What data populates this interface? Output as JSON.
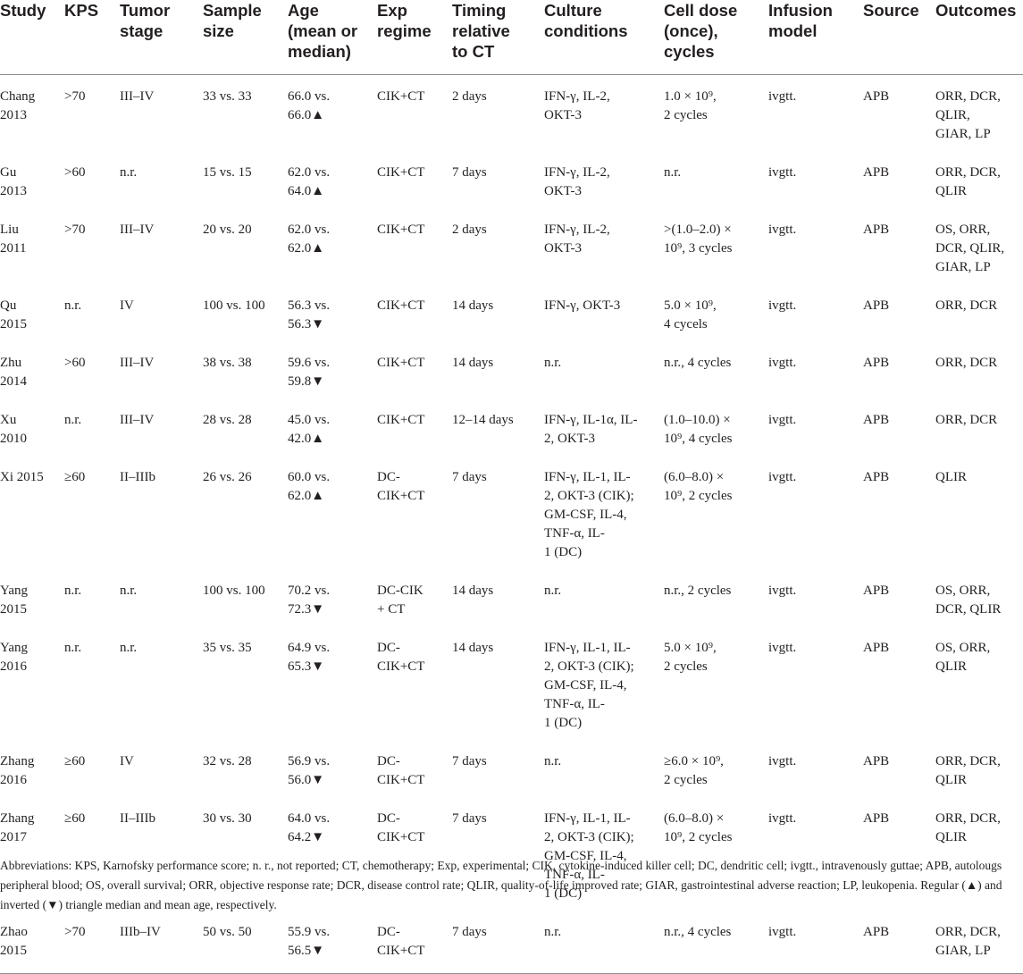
{
  "table": {
    "headers": [
      [
        "Study"
      ],
      [
        "KPS"
      ],
      [
        "Tumor",
        "stage"
      ],
      [
        "Sample",
        "size"
      ],
      [
        "Age",
        "(mean or",
        "median)"
      ],
      [
        "Exp",
        "regime"
      ],
      [
        "Timing",
        "relative",
        "to CT"
      ],
      [
        "Culture",
        "conditions"
      ],
      [
        "Cell dose",
        "(once),",
        "cycles"
      ],
      [
        "Infusion",
        "model"
      ],
      [
        "Source"
      ],
      [
        "Outcomes"
      ]
    ],
    "rows": [
      {
        "study": [
          "Chang",
          "2013"
        ],
        "kps": ">70",
        "stage": "III–IV",
        "sample": "33 vs. 33",
        "age": [
          "66.0 vs.",
          "66.0▲"
        ],
        "regime": [
          "CIK+CT"
        ],
        "timing": "2 days",
        "culture": [
          "IFN-γ, IL-2,",
          "OKT-3"
        ],
        "dose": [
          "1.0 × 10⁹,",
          "2 cycles"
        ],
        "infusion": "ivgtt.",
        "source": "APB",
        "outcomes": [
          "ORR, DCR,",
          "QLIR,",
          "GIAR, LP"
        ]
      },
      {
        "study": [
          "Gu",
          "2013"
        ],
        "kps": ">60",
        "stage": "n.r.",
        "sample": "15 vs. 15",
        "age": [
          "62.0 vs.",
          "64.0▲"
        ],
        "regime": [
          "CIK+CT"
        ],
        "timing": "7 days",
        "culture": [
          "IFN-γ, IL-2,",
          "OKT-3"
        ],
        "dose": [
          "n.r."
        ],
        "infusion": "ivgtt.",
        "source": "APB",
        "outcomes": [
          "ORR, DCR,",
          "QLIR"
        ]
      },
      {
        "study": [
          "Liu",
          "2011"
        ],
        "kps": ">70",
        "stage": "III–IV",
        "sample": "20 vs. 20",
        "age": [
          "62.0 vs.",
          "62.0▲"
        ],
        "regime": [
          "CIK+CT"
        ],
        "timing": "2 days",
        "culture": [
          "IFN-γ, IL-2,",
          "OKT-3"
        ],
        "dose": [
          ">(1.0–2.0) ×",
          "10⁹, 3 cycles"
        ],
        "infusion": "ivgtt.",
        "source": "APB",
        "outcomes": [
          "OS, ORR,",
          "DCR, QLIR,",
          "GIAR, LP"
        ]
      },
      {
        "study": [
          "Qu",
          "2015"
        ],
        "kps": "n.r.",
        "stage": "IV",
        "sample": "100 vs. 100",
        "age": [
          "56.3 vs.",
          "56.3▼"
        ],
        "regime": [
          "CIK+CT"
        ],
        "timing": "14 days",
        "culture": [
          "IFN-γ, OKT-3"
        ],
        "dose": [
          "5.0 × 10⁹,",
          "4 cycels"
        ],
        "infusion": "ivgtt.",
        "source": "APB",
        "outcomes": [
          "ORR, DCR"
        ]
      },
      {
        "study": [
          "Zhu",
          "2014"
        ],
        "kps": ">60",
        "stage": "III–IV",
        "sample": "38 vs. 38",
        "age": [
          "59.6 vs.",
          "59.8▼"
        ],
        "regime": [
          "CIK+CT"
        ],
        "timing": "14 days",
        "culture": [
          "n.r."
        ],
        "dose": [
          "n.r., 4 cycles"
        ],
        "infusion": "ivgtt.",
        "source": "APB",
        "outcomes": [
          "ORR, DCR"
        ]
      },
      {
        "study": [
          "Xu",
          "2010"
        ],
        "kps": "n.r.",
        "stage": "III–IV",
        "sample": "28 vs. 28",
        "age": [
          "45.0 vs.",
          "42.0▲"
        ],
        "regime": [
          "CIK+CT"
        ],
        "timing": "12–14 days",
        "culture": [
          "IFN-γ, IL-1α, IL-",
          "2, OKT-3"
        ],
        "dose": [
          "(1.0–10.0) ×",
          "10⁹, 4 cycles"
        ],
        "infusion": "ivgtt.",
        "source": "APB",
        "outcomes": [
          "ORR, DCR"
        ]
      },
      {
        "study": [
          "Xi 2015"
        ],
        "kps": "≥60",
        "stage": "II–IIIb",
        "sample": "26 vs. 26",
        "age": [
          "60.0 vs.",
          "62.0▲"
        ],
        "regime": [
          "DC-",
          "CIK+CT"
        ],
        "timing": "7 days",
        "culture": [
          "IFN-γ, IL-1, IL-",
          "2, OKT-3 (CIK);",
          "GM-CSF, IL-4,",
          "TNF-α, IL-",
          "1 (DC)"
        ],
        "dose": [
          "(6.0–8.0) ×",
          "10⁹, 2 cycles"
        ],
        "infusion": "ivgtt.",
        "source": "APB",
        "outcomes": [
          "QLIR"
        ]
      },
      {
        "study": [
          "Yang",
          "2015"
        ],
        "kps": "n.r.",
        "stage": "n.r.",
        "sample": "100 vs. 100",
        "age": [
          "70.2 vs.",
          "72.3▼"
        ],
        "regime": [
          "DC-CIK",
          "+ CT"
        ],
        "timing": "14 days",
        "culture": [
          "n.r."
        ],
        "dose": [
          "n.r., 2 cycles"
        ],
        "infusion": "ivgtt.",
        "source": "APB",
        "outcomes": [
          "OS, ORR,",
          "DCR, QLIR"
        ]
      },
      {
        "study": [
          "Yang",
          "2016"
        ],
        "kps": "n.r.",
        "stage": "n.r.",
        "sample": "35 vs. 35",
        "age": [
          "64.9 vs.",
          "65.3▼"
        ],
        "regime": [
          "DC-",
          "CIK+CT"
        ],
        "timing": "14 days",
        "culture": [
          "IFN-γ, IL-1, IL-",
          "2, OKT-3 (CIK);",
          "GM-CSF, IL-4,",
          "TNF-α, IL-",
          "1 (DC)"
        ],
        "dose": [
          "5.0 × 10⁹,",
          "2 cycles"
        ],
        "infusion": "ivgtt.",
        "source": "APB",
        "outcomes": [
          "OS, ORR,",
          "QLIR"
        ]
      },
      {
        "study": [
          "Zhang",
          "2016"
        ],
        "kps": "≥60",
        "stage": "IV",
        "sample": "32 vs. 28",
        "age": [
          "56.9 vs.",
          "56.0▼"
        ],
        "regime": [
          "DC-",
          "CIK+CT"
        ],
        "timing": "7 days",
        "culture": [
          "n.r."
        ],
        "dose": [
          "≥6.0 × 10⁹,",
          "2 cycles"
        ],
        "infusion": "ivgtt.",
        "source": "APB",
        "outcomes": [
          "ORR, DCR,",
          "QLIR"
        ]
      },
      {
        "study": [
          "Zhang",
          "2017"
        ],
        "kps": "≥60",
        "stage": "II–IIIb",
        "sample": "30 vs. 30",
        "age": [
          "64.0 vs.",
          "64.2▼"
        ],
        "regime": [
          "DC-",
          "CIK+CT"
        ],
        "timing": "7 days",
        "culture": [
          "IFN-γ, IL-1, IL-",
          "2, OKT-3 (CIK);",
          "GM-CSF, IL-4,",
          "TNF-α, IL-",
          "1 (DC)"
        ],
        "dose": [
          "(6.0–8.0) ×",
          "10⁹, 2 cycles"
        ],
        "infusion": "ivgtt.",
        "source": "APB",
        "outcomes": [
          "ORR, DCR,",
          "QLIR"
        ]
      },
      {
        "study": [
          "Zhao",
          "2015"
        ],
        "kps": ">70",
        "stage": "IIIb–IV",
        "sample": "50 vs. 50",
        "age": [
          "55.9 vs.",
          "56.5▼"
        ],
        "regime": [
          "DC-",
          "CIK+CT"
        ],
        "timing": "7 days",
        "culture": [
          "n.r."
        ],
        "dose": [
          "n.r., 4 cycles"
        ],
        "infusion": "ivgtt.",
        "source": "APB",
        "outcomes": [
          "ORR, DCR,",
          "GIAR, LP"
        ]
      }
    ]
  },
  "footnote": "Abbreviations: KPS, Karnofsky performance score; n. r., not reported; CT, chemotherapy; Exp, experimental; CIK, cytokine-induced killer cell; DC, dendritic cell; ivgtt., intravenously guttae; APB, autolougs peripheral blood; OS, overall survival; ORR, objective response rate; DCR, disease control rate; QLIR, quality-of-life improved rate; GIAR, gastrointestinal adverse reaction; LP, leukopenia. Regular (▲) and inverted (▼) triangle median and mean age, respectively."
}
